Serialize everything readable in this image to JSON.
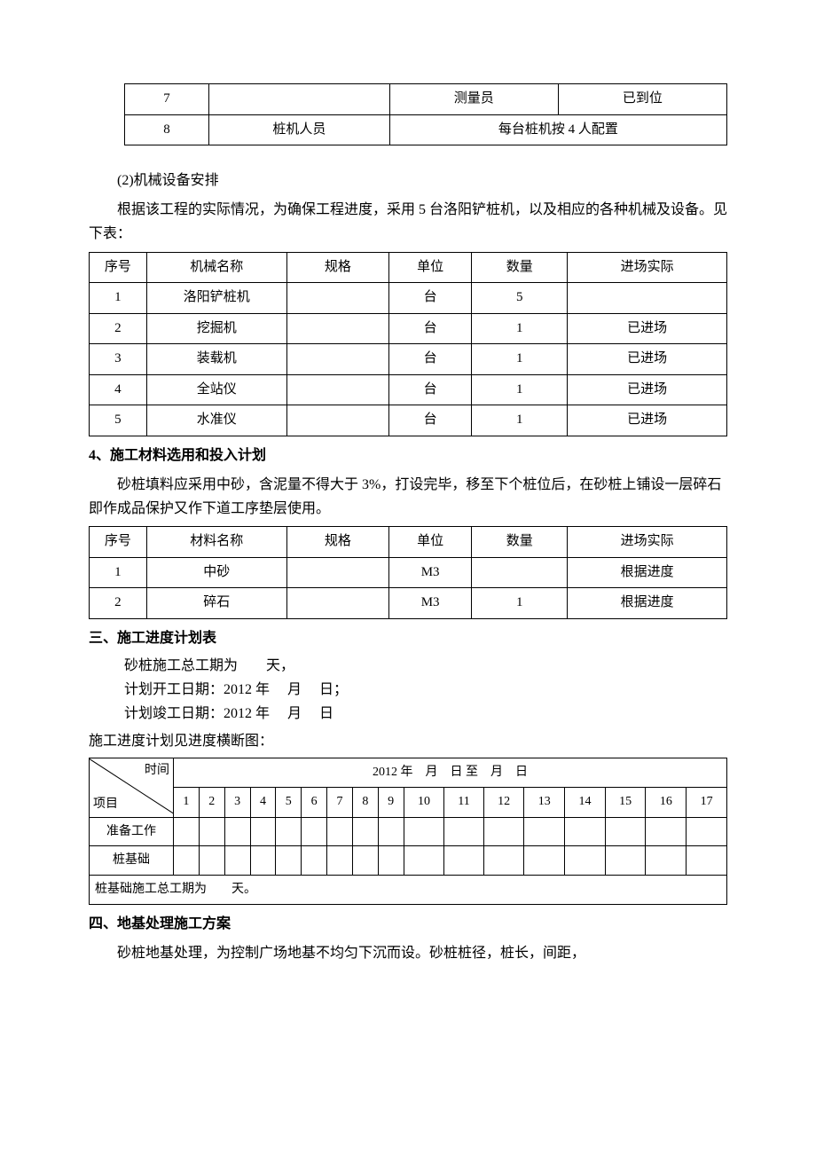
{
  "personnel_table": {
    "rows": [
      {
        "idx": "7",
        "role": "",
        "pos": "测量员",
        "status": "已到位",
        "merged": false
      },
      {
        "idx": "8",
        "role": "桩机人员",
        "note": "每台桩机按 4 人配置",
        "merged": true
      }
    ]
  },
  "sec2": {
    "title": "(2)机械设备安排",
    "para": "根据该工程的实际情况，为确保工程进度，采用 5 台洛阳铲桩机，以及相应的各种机械及设备。见下表："
  },
  "equip_table": {
    "columns": [
      "序号",
      "机械名称",
      "规格",
      "单位",
      "数量",
      "进场实际"
    ],
    "rows": [
      [
        "1",
        "洛阳铲桩机",
        "",
        "台",
        "5",
        ""
      ],
      [
        "2",
        "挖掘机",
        "",
        "台",
        "1",
        "已进场"
      ],
      [
        "3",
        "装载机",
        "",
        "台",
        "1",
        "已进场"
      ],
      [
        "4",
        "全站仪",
        "",
        "台",
        "1",
        "已进场"
      ],
      [
        "5",
        "水准仪",
        "",
        "台",
        "1",
        "已进场"
      ]
    ]
  },
  "sec4": {
    "title": "4、施工材料选用和投入计划",
    "para": "砂桩填料应采用中砂，含泥量不得大于 3%，打设完毕，移至下个桩位后，在砂桩上铺设一层碎石即作成品保护又作下道工序垫层使用。"
  },
  "material_table": {
    "columns": [
      "序号",
      "材料名称",
      "规格",
      "单位",
      "数量",
      "进场实际"
    ],
    "rows": [
      [
        "1",
        "中砂",
        "",
        "M3",
        "",
        "根据进度"
      ],
      [
        "2",
        "碎石",
        "",
        "M3",
        "1",
        "根据进度"
      ]
    ]
  },
  "sec_progress": {
    "title": "三、施工进度计划表",
    "lines": [
      "砂桩施工总工期为　　天，",
      "计划开工日期：2012 年　 月　 日；",
      "计划竣工日期：2012 年　 月　 日"
    ],
    "note": "施工进度计划见进度横断图："
  },
  "gantt": {
    "diag_top": "时间",
    "diag_bot": "项目",
    "time_header": "2012 年　月　日 至　月　日",
    "days": [
      "1",
      "2",
      "3",
      "4",
      "5",
      "6",
      "7",
      "8",
      "9",
      "10",
      "11",
      "12",
      "13",
      "14",
      "15",
      "16",
      "17"
    ],
    "rows": [
      "准备工作",
      "桩基础"
    ],
    "footer": "桩基础施工总工期为　　天。"
  },
  "sec_foundation": {
    "title": "四、地基处理施工方案",
    "para": "砂桩地基处理，为控制广场地基不均匀下沉而设。砂桩桩径，桩长，间距，"
  },
  "col_widths": {
    "six_col": [
      "9%",
      "22%",
      "16%",
      "13%",
      "15%",
      "25%"
    ],
    "four_col_personnel": [
      "14%",
      "30%",
      "28%",
      "28%"
    ]
  }
}
